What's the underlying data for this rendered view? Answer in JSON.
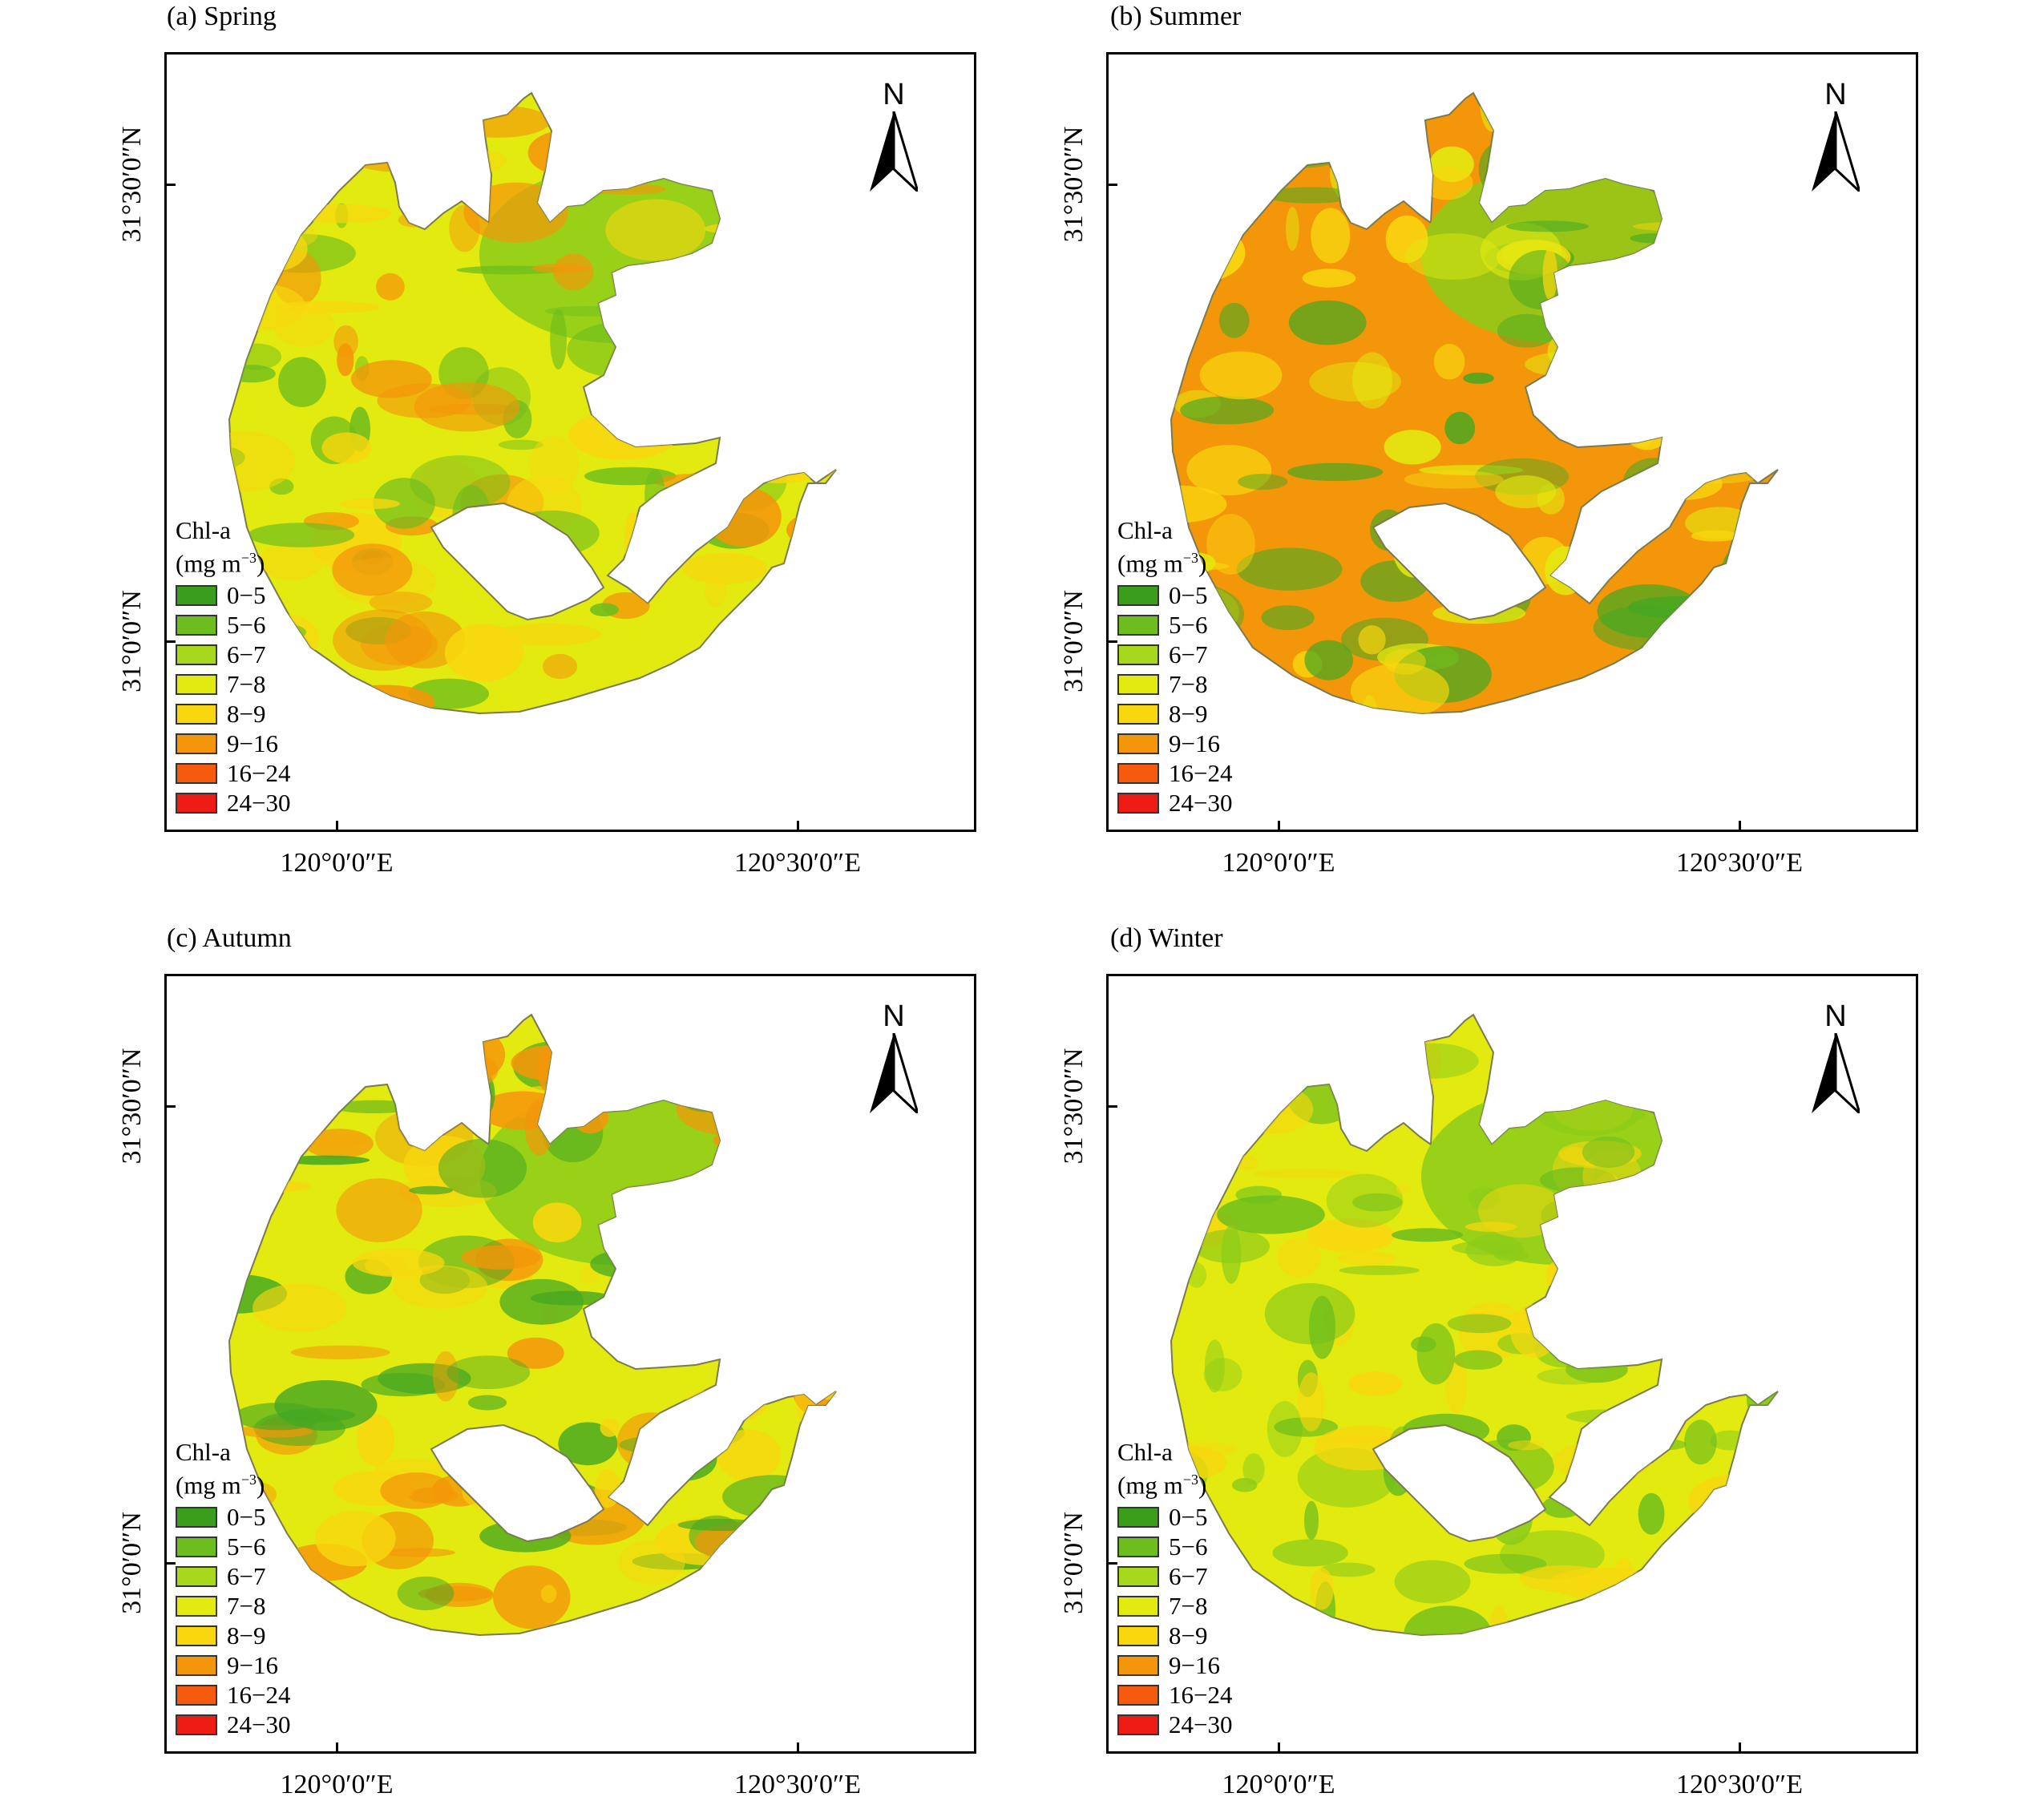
{
  "panels": [
    {
      "title": "(a) Spring",
      "base_color": "#e2ea10",
      "water_color": "#8ccc1a",
      "accents": [
        "#f4960a",
        "#f8d70f",
        "#6cbd1d"
      ]
    },
    {
      "title": "(b) Summer",
      "base_color": "#f4960a",
      "water_color": "#8ccc1a",
      "accents": [
        "#f8d70f",
        "#46a822",
        "#e2ea10"
      ]
    },
    {
      "title": "(c) Autumn",
      "base_color": "#e2ea10",
      "water_color": "#8ccc1a",
      "accents": [
        "#f8d70f",
        "#f4960a",
        "#46a822"
      ]
    },
    {
      "title": "(d) Winter",
      "base_color": "#e2ea10",
      "water_color": "#8ccc1a",
      "accents": [
        "#8ccc1a",
        "#f8d70f",
        "#6cbd1d"
      ]
    }
  ],
  "axes": {
    "x_ticks": [
      "120°0′0″E",
      "120°30′0″E"
    ],
    "y_ticks": [
      "31°30′0″N",
      "31°0′0″N"
    ]
  },
  "north_arrow": {
    "letter": "N",
    "icon": "north-arrow-icon"
  },
  "legend": {
    "title": "Chl-a",
    "unit_base": "(mg m",
    "unit_exp": "−3",
    "unit_close": ")",
    "classes": [
      {
        "label": "0−5",
        "color": "#3a9e1c"
      },
      {
        "label": "5−6",
        "color": "#6cbd1d"
      },
      {
        "label": "6−7",
        "color": "#a8d81c"
      },
      {
        "label": "7−8",
        "color": "#e2ea10"
      },
      {
        "label": "8−9",
        "color": "#f8d70f"
      },
      {
        "label": "9−16",
        "color": "#f4960a"
      },
      {
        "label": "16−24",
        "color": "#f55a0e"
      },
      {
        "label": "24−30",
        "color": "#ee1c14"
      }
    ]
  }
}
